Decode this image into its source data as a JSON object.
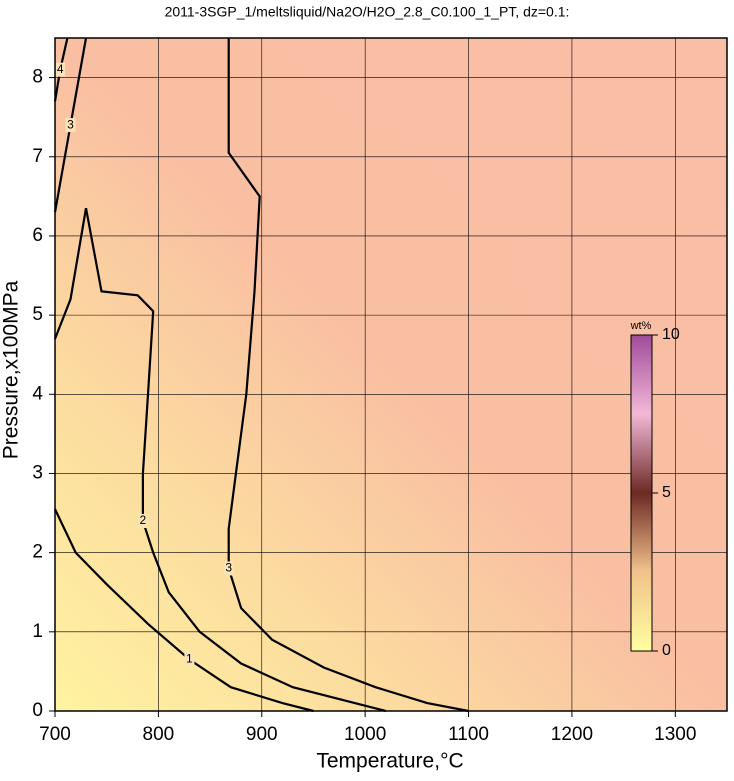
{
  "chart_data": {
    "type": "contour",
    "title": "2011-3SGP_1/meltsliquid/Na2O/H2O_2.8_C0.100_1_PT, dz=0.1:",
    "x_label": "Temperature,°C",
    "y_label": "Pressure,x100MPa",
    "xlim": [
      700,
      1350
    ],
    "ylim": [
      0,
      8.5
    ],
    "xticks": [
      700,
      800,
      900,
      1000,
      1100,
      1200,
      1300
    ],
    "yticks": [
      0,
      1,
      2,
      3,
      4,
      5,
      6,
      7,
      8
    ],
    "grid": true,
    "colorbar": {
      "label": "wt%",
      "lim": [
        0,
        10
      ],
      "ticks": [
        0,
        5,
        10
      ]
    },
    "contours": [
      {
        "level": 1,
        "x": [
          700,
          720,
          750,
          790,
          830,
          870,
          920,
          950
        ],
        "y": [
          2.55,
          2.0,
          1.6,
          1.1,
          0.65,
          0.3,
          0.1,
          0
        ]
      },
      {
        "level": 2,
        "x": [
          700,
          715,
          730,
          745,
          780,
          795,
          790,
          785,
          785,
          795,
          810,
          840,
          880,
          930,
          990,
          1020
        ],
        "y": [
          4.7,
          5.2,
          6.35,
          5.3,
          5.25,
          5.05,
          4.0,
          3.0,
          2.4,
          2.0,
          1.5,
          1.0,
          0.6,
          0.3,
          0.1,
          0
        ]
      },
      {
        "level": 3,
        "x": [
          868,
          868,
          898,
          893,
          885,
          875,
          868,
          868,
          880,
          910,
          960,
          1010,
          1060,
          1100
        ],
        "y": [
          8.5,
          7.05,
          6.5,
          5.3,
          4.0,
          3.0,
          2.3,
          1.8,
          1.3,
          0.9,
          0.55,
          0.3,
          0.1,
          0
        ]
      },
      {
        "level": 3,
        "x": [
          700,
          715,
          730
        ],
        "y": [
          6.3,
          7.4,
          8.5
        ]
      },
      {
        "level": 4,
        "x": [
          700,
          705,
          712
        ],
        "y": [
          7.7,
          8.1,
          8.5
        ]
      }
    ]
  }
}
